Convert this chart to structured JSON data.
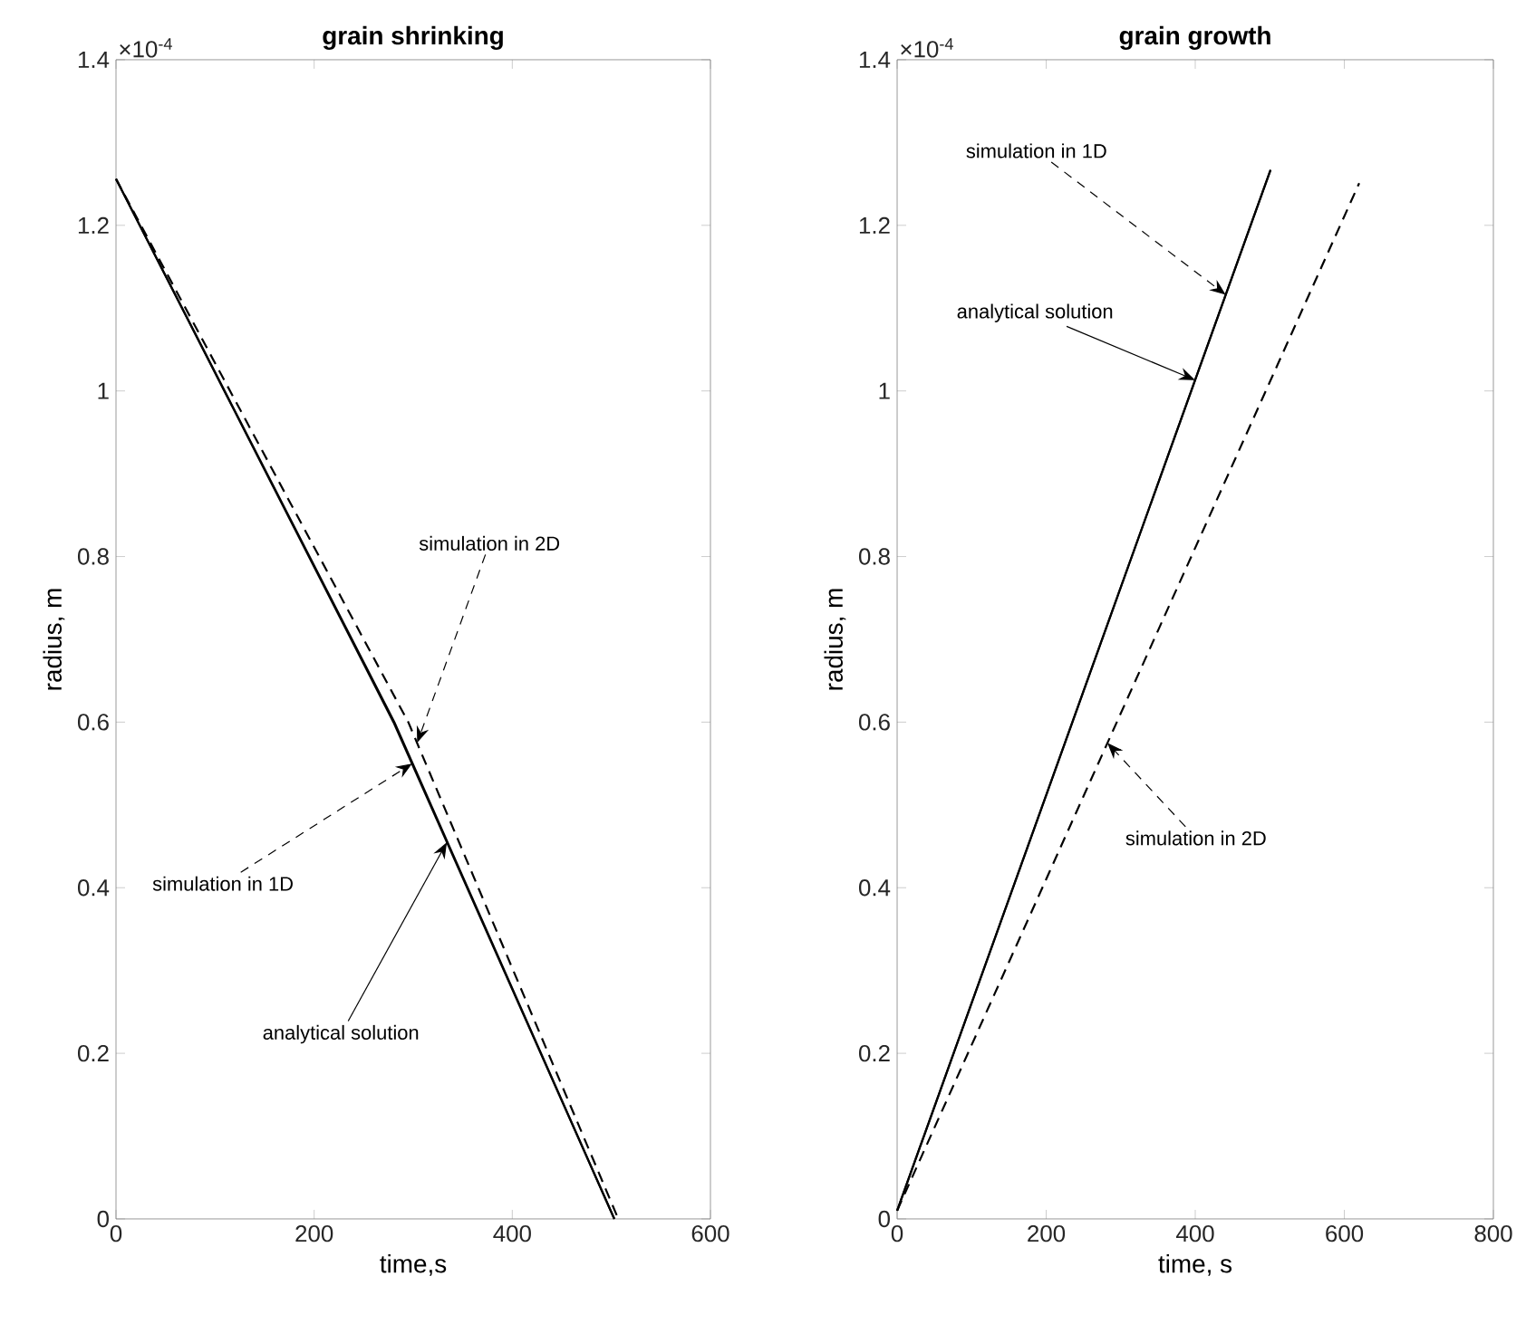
{
  "chart_data": [
    {
      "type": "line",
      "title": "grain shrinking",
      "xlabel": "time,s",
      "ylabel": "radius, m",
      "xlim": [
        0,
        600
      ],
      "ylim": [
        0,
        1.4
      ],
      "xticks": [
        0,
        200,
        400,
        600
      ],
      "yticks": [
        0,
        0.2,
        0.4,
        0.6,
        0.8,
        1,
        1.2,
        1.4
      ],
      "series": [
        {
          "color": "#000000",
          "line_style": "solid",
          "x": [
            0,
            280,
            503
          ],
          "values": [
            1.256,
            0.6,
            0
          ]
        },
        {
          "color": "#000000",
          "line_style": "solid",
          "x": [
            0,
            281,
            503
          ],
          "values": [
            1.256,
            0.6,
            0
          ]
        },
        {
          "color": "#000000",
          "line_style": "dashed",
          "x": [
            0,
            295,
            507
          ],
          "values": [
            1.256,
            0.6,
            0
          ]
        }
      ],
      "annotations": [
        "×10$^{-4}$",
        {
          "text": "simulation in 2D",
          "x": 304,
          "y": 0.575
        },
        {
          "text": "simulation in 1D",
          "x": 299,
          "y": 0.55
        },
        {
          "text": "analytical solution",
          "x": 334,
          "y": 0.455
        }
      ]
    },
    {
      "type": "line",
      "title": "grain growth",
      "xlabel": "time, s",
      "ylabel": "radius, m",
      "xlim": [
        0,
        800
      ],
      "ylim": [
        0,
        1.4
      ],
      "xticks": [
        0,
        200,
        400,
        600,
        800
      ],
      "yticks": [
        0,
        0.2,
        0.4,
        0.6,
        0.8,
        1,
        1.2,
        1.4
      ],
      "series": [
        {
          "color": "#000000",
          "line_style": "solid",
          "x": [
            0,
            501
          ],
          "values": [
            0.01,
            1.267
          ]
        },
        {
          "color": "#000000",
          "line_style": "solid",
          "x": [
            0,
            501
          ],
          "values": [
            0.01,
            1.267
          ]
        },
        {
          "color": "#000000",
          "line_style": "dashed",
          "x": [
            0,
            620
          ],
          "values": [
            0.01,
            1.251
          ]
        }
      ],
      "annotations": [
        "×10$^{-4}$",
        {
          "text": "simulation in 1D",
          "x": 441,
          "y": 1.116
        },
        {
          "text": "analytical solution",
          "x": 400,
          "y": 1.013
        },
        {
          "text": "simulation in 2D",
          "x": 282,
          "y": 0.575
        }
      ]
    }
  ]
}
